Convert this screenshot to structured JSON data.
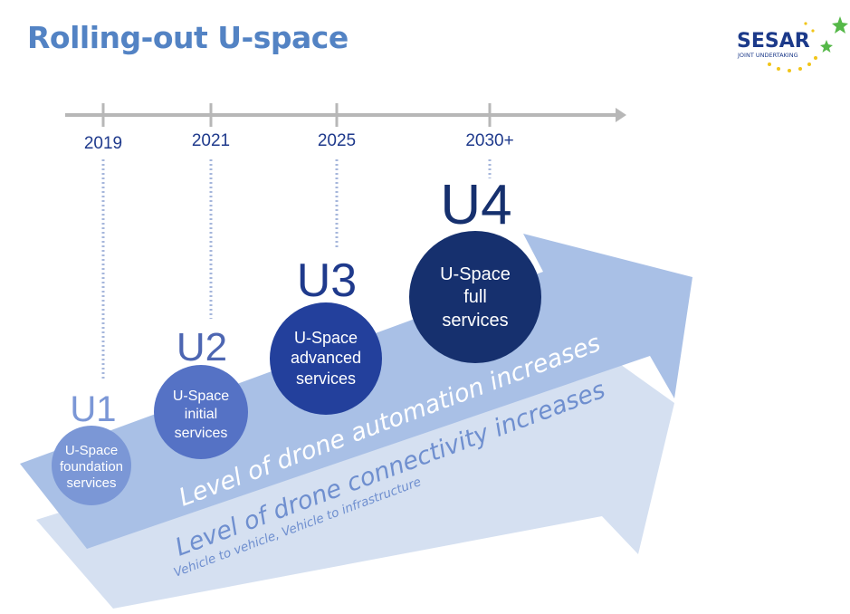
{
  "title": "Rolling-out U-space",
  "logo": {
    "name": "SESAR",
    "subtitle": "JOINT UNDERTAKING"
  },
  "timeline": {
    "years": [
      "2019",
      "2021",
      "2025",
      "2030+"
    ]
  },
  "stages": [
    {
      "code": "U1",
      "lines": [
        "U-Space",
        "foundation",
        "services"
      ],
      "color": "#7b97d6",
      "code_color": "#7b97d6"
    },
    {
      "code": "U2",
      "lines": [
        "U-Space",
        "initial",
        "services"
      ],
      "color": "#5572c5",
      "code_color": "#4d66b2"
    },
    {
      "code": "U3",
      "lines": [
        "U-Space",
        "advanced",
        "services"
      ],
      "color": "#23409c",
      "code_color": "#1f3a8c"
    },
    {
      "code": "U4",
      "lines": [
        "U-Space",
        "full",
        "services"
      ],
      "color": "#16306e",
      "code_color": "#16306e"
    }
  ],
  "arrows": {
    "automation": {
      "label": "Level of drone automation increases"
    },
    "connectivity": {
      "label": "Level of drone connectivity increases",
      "sublabel": "Vehicle to vehicle, Vehicle to infrastructure"
    }
  },
  "colors": {
    "title": "#5383c4",
    "timeline": "#b7b7b7",
    "automation_arrow": "#a9c0e6",
    "connectivity_arrow": "#d5e0f1",
    "dotted_line": "#a5b6db"
  }
}
